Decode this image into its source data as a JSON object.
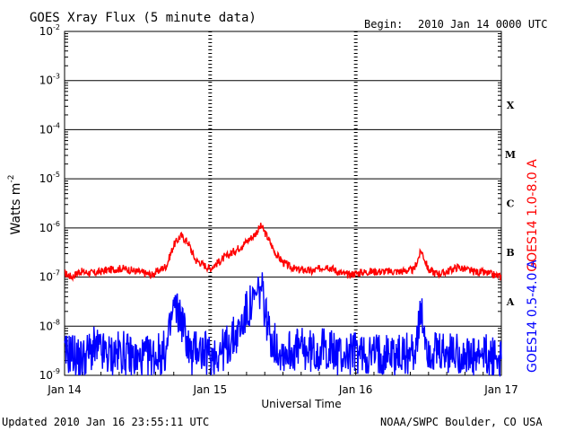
{
  "header": {
    "title": "GOES Xray Flux (5 minute data)",
    "begin_label": "Begin:",
    "begin_value": "2010 Jan 14 0000 UTC"
  },
  "footer": {
    "updated": "Updated 2010 Jan 16 23:55:11 UTC",
    "credit": "NOAA/SWPC Boulder, CO USA"
  },
  "chart_data": {
    "type": "line",
    "title": "GOES Xray Flux (5 minute data)",
    "xlabel": "Universal Time",
    "ylabel": "Watts m",
    "ylabel_sup": "-2",
    "y_scale": "log",
    "ylim": [
      1e-09,
      0.01
    ],
    "y_ticks": [
      {
        "base": "10",
        "exp": "-2",
        "value": 0.01
      },
      {
        "base": "10",
        "exp": "-3",
        "value": 0.001
      },
      {
        "base": "10",
        "exp": "-4",
        "value": 0.0001
      },
      {
        "base": "10",
        "exp": "-5",
        "value": 1e-05
      },
      {
        "base": "10",
        "exp": "-6",
        "value": 1e-06
      },
      {
        "base": "10",
        "exp": "-7",
        "value": 1e-07
      },
      {
        "base": "10",
        "exp": "-8",
        "value": 1e-08
      },
      {
        "base": "10",
        "exp": "-9",
        "value": 1e-09
      }
    ],
    "x_ticks": [
      "Jan 14",
      "Jan 15",
      "Jan 16",
      "Jan 17"
    ],
    "xlim_days": [
      0,
      3
    ],
    "grid": true,
    "flare_classes": [
      {
        "label": "X",
        "low": 0.0001,
        "high": 0.001
      },
      {
        "label": "M",
        "low": 1e-05,
        "high": 0.0001
      },
      {
        "label": "C",
        "low": 1e-06,
        "high": 1e-05
      },
      {
        "label": "B",
        "low": 1e-07,
        "high": 1e-06
      },
      {
        "label": "A",
        "low": 1e-08,
        "high": 1e-07
      }
    ],
    "series": [
      {
        "name": "GOES14 1.0-8.0 A",
        "color": "#ff0000",
        "x": [
          0,
          0.05,
          0.1,
          0.2,
          0.3,
          0.4,
          0.5,
          0.6,
          0.7,
          0.75,
          0.8,
          0.85,
          0.88,
          0.9,
          0.93,
          0.95,
          1.0,
          1.1,
          1.2,
          1.3,
          1.35,
          1.4,
          1.45,
          1.5,
          1.55,
          1.6,
          1.65,
          1.7,
          1.8,
          1.9,
          1.95,
          2.0,
          2.1,
          2.2,
          2.3,
          2.4,
          2.45,
          2.5,
          2.55,
          2.6,
          2.7,
          2.8,
          2.9,
          2.95,
          3.0
        ],
        "y": [
          1.2e-07,
          1e-07,
          1.3e-07,
          1.2e-07,
          1.4e-07,
          1.5e-07,
          1.3e-07,
          1.1e-07,
          1.7e-07,
          4.5e-07,
          7e-07,
          5e-07,
          3e-07,
          2.2e-07,
          2e-07,
          1.8e-07,
          1.5e-07,
          2.5e-07,
          4e-07,
          7e-07,
          1.1e-06,
          6e-07,
          3e-07,
          2e-07,
          1.6e-07,
          1.4e-07,
          1.4e-07,
          1.3e-07,
          1.7e-07,
          1.2e-07,
          1.1e-07,
          1.2e-07,
          1.3e-07,
          1.3e-07,
          1.3e-07,
          1.4e-07,
          3.5e-07,
          1.4e-07,
          1.2e-07,
          1.2e-07,
          1.6e-07,
          1.3e-07,
          1.2e-07,
          1.1e-07,
          1e-07
        ]
      },
      {
        "name": "GOES14 0.5-4.0 A",
        "color": "#0000ff",
        "x": [
          0,
          0.05,
          0.1,
          0.2,
          0.3,
          0.4,
          0.5,
          0.6,
          0.7,
          0.75,
          0.8,
          0.85,
          0.88,
          0.9,
          0.95,
          1.0,
          1.1,
          1.2,
          1.25,
          1.3,
          1.35,
          1.38,
          1.4,
          1.45,
          1.5,
          1.6,
          1.7,
          1.8,
          1.9,
          2.0,
          2.1,
          2.2,
          2.3,
          2.4,
          2.45,
          2.5,
          2.6,
          2.7,
          2.8,
          2.9,
          3.0
        ],
        "y": [
          2.5e-09,
          3e-09,
          2e-09,
          3.5e-09,
          2.5e-09,
          3e-09,
          2e-09,
          2.5e-09,
          3e-09,
          2.5e-08,
          1.5e-08,
          4e-09,
          2e-09,
          4e-09,
          3e-09,
          2.5e-09,
          3.5e-09,
          8e-09,
          2e-08,
          3e-08,
          6e-08,
          2e-08,
          8e-09,
          4e-09,
          3e-09,
          3.5e-09,
          3e-09,
          3.5e-09,
          2.5e-09,
          3e-09,
          2.5e-09,
          3e-09,
          2.5e-09,
          3e-09,
          1.6e-08,
          3e-09,
          2.5e-09,
          3e-09,
          2e-09,
          2.5e-09,
          2e-09
        ]
      }
    ]
  }
}
